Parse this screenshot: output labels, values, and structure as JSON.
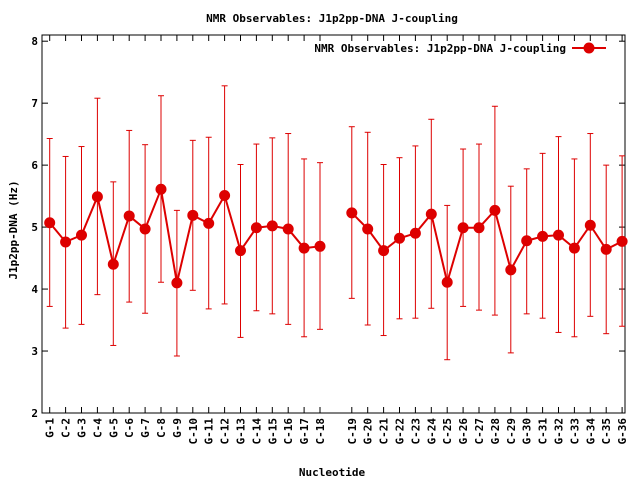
{
  "chart_data": {
    "type": "line",
    "title": "NMR Observables: J1p2pp-DNA J-coupling",
    "xlabel": "Nucleotide",
    "ylabel": "J1p2pp-DNA (Hz)",
    "ylim": [
      2,
      8.1
    ],
    "yticks": [
      2,
      3,
      4,
      5,
      6,
      7,
      8
    ],
    "grid": false,
    "legend_position": "top-right",
    "color": "#dd0000",
    "series": [
      {
        "name": "NMR Observables: J1p2pp-DNA J-coupling",
        "segments": [
          {
            "categories": [
              "G-1",
              "C-2",
              "G-3",
              "C-4",
              "G-5",
              "C-6",
              "G-7",
              "C-8",
              "G-9",
              "C-10",
              "G-11",
              "C-12",
              "G-13",
              "C-14",
              "G-15",
              "C-16",
              "G-17",
              "C-18"
            ],
            "values": [
              5.07,
              4.76,
              4.87,
              5.49,
              4.4,
              5.18,
              4.97,
              5.61,
              4.1,
              5.19,
              5.06,
              5.51,
              4.62,
              4.99,
              5.02,
              4.97,
              4.66,
              4.69
            ],
            "err_low": [
              3.72,
              3.37,
              3.43,
              3.91,
              3.09,
              3.79,
              3.61,
              4.11,
              2.92,
              3.98,
              3.68,
              3.76,
              3.22,
              3.65,
              3.6,
              3.43,
              3.23,
              3.35
            ],
            "err_high": [
              6.43,
              6.14,
              6.3,
              7.08,
              5.73,
              6.56,
              6.33,
              7.12,
              5.27,
              6.4,
              6.45,
              7.28,
              6.01,
              6.34,
              6.44,
              6.51,
              6.1,
              6.04
            ]
          },
          {
            "categories": [
              "C-19",
              "G-20",
              "C-21",
              "G-22",
              "C-23",
              "G-24",
              "C-25",
              "G-26",
              "C-27",
              "G-28",
              "C-29",
              "G-30",
              "C-31",
              "G-32",
              "C-33",
              "G-34",
              "C-35",
              "G-36"
            ],
            "values": [
              5.23,
              4.97,
              4.62,
              4.82,
              4.9,
              5.21,
              4.11,
              4.99,
              4.99,
              5.27,
              4.31,
              4.78,
              4.85,
              4.87,
              4.66,
              5.03,
              4.64,
              4.77
            ],
            "err_low": [
              3.85,
              3.42,
              3.25,
              3.52,
              3.53,
              3.69,
              2.86,
              3.72,
              3.66,
              3.58,
              2.97,
              3.6,
              3.53,
              3.3,
              3.23,
              3.56,
              3.28,
              3.4
            ],
            "err_high": [
              6.62,
              6.53,
              6.01,
              6.12,
              6.31,
              6.74,
              5.35,
              6.26,
              6.34,
              6.95,
              5.66,
              5.94,
              6.19,
              6.46,
              6.1,
              6.51,
              6.0,
              6.15
            ]
          }
        ]
      }
    ],
    "categories": [
      "G-1",
      "C-2",
      "G-3",
      "C-4",
      "G-5",
      "C-6",
      "G-7",
      "C-8",
      "G-9",
      "C-10",
      "G-11",
      "C-12",
      "G-13",
      "C-14",
      "G-15",
      "C-16",
      "G-17",
      "C-18",
      "C-19",
      "G-20",
      "C-21",
      "G-22",
      "C-23",
      "G-24",
      "C-25",
      "G-26",
      "C-27",
      "G-28",
      "C-29",
      "G-30",
      "C-31",
      "G-32",
      "C-33",
      "G-34",
      "C-35",
      "G-36"
    ]
  }
}
